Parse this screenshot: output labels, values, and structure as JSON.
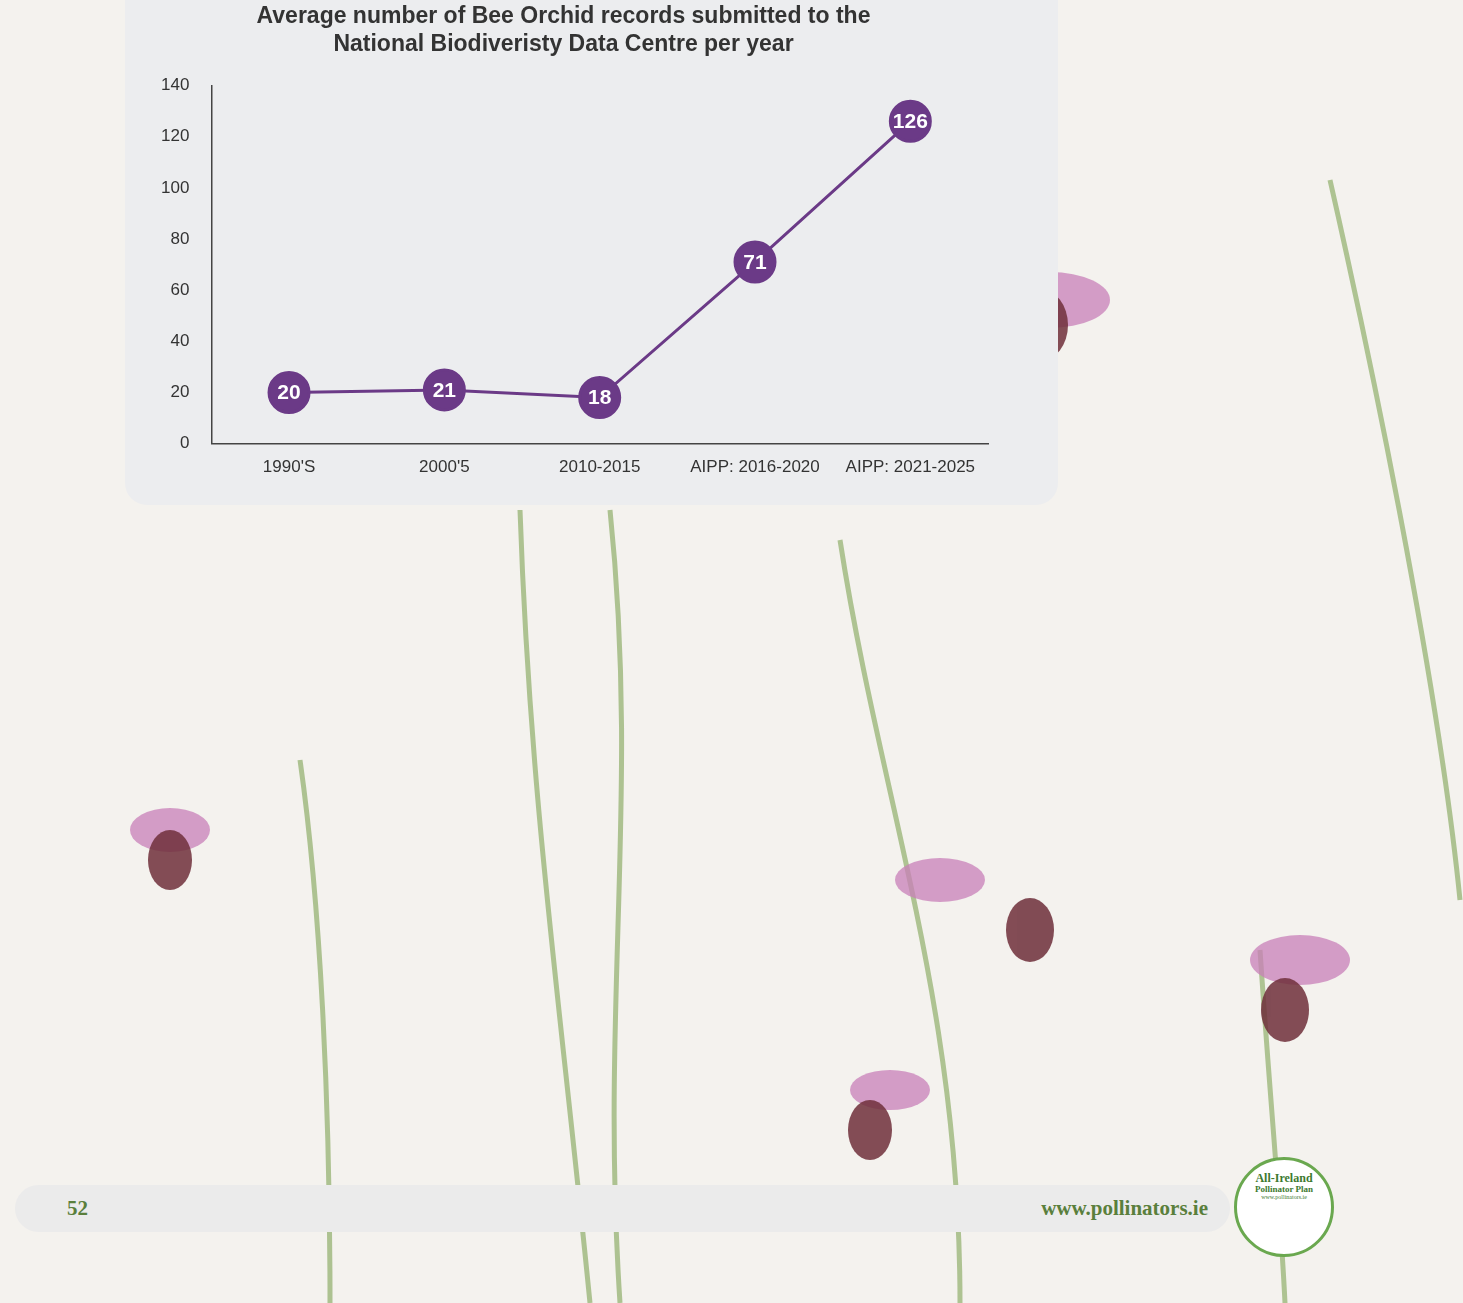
{
  "chart_data": {
    "type": "line",
    "title": "Average number of Bee Orchid records submitted to the National Biodiveristy Data Centre per year",
    "categories": [
      "1990'S",
      "2000'5",
      "2010-2015",
      "AIPP: 2016-2020",
      "AIPP: 2021-2025"
    ],
    "values": [
      20,
      21,
      18,
      71,
      126
    ],
    "color": "#6b3a87",
    "marker": "circle",
    "ylim": [
      0,
      140
    ],
    "yticks": [
      0,
      20,
      40,
      60,
      80,
      100,
      120,
      140
    ],
    "grid": false,
    "data_labels": true
  },
  "footer": {
    "page": "52",
    "url": "www.pollinators.ie",
    "logo": [
      "All-Ireland",
      "Pollinator Plan",
      "www.pollinators.ie"
    ]
  }
}
